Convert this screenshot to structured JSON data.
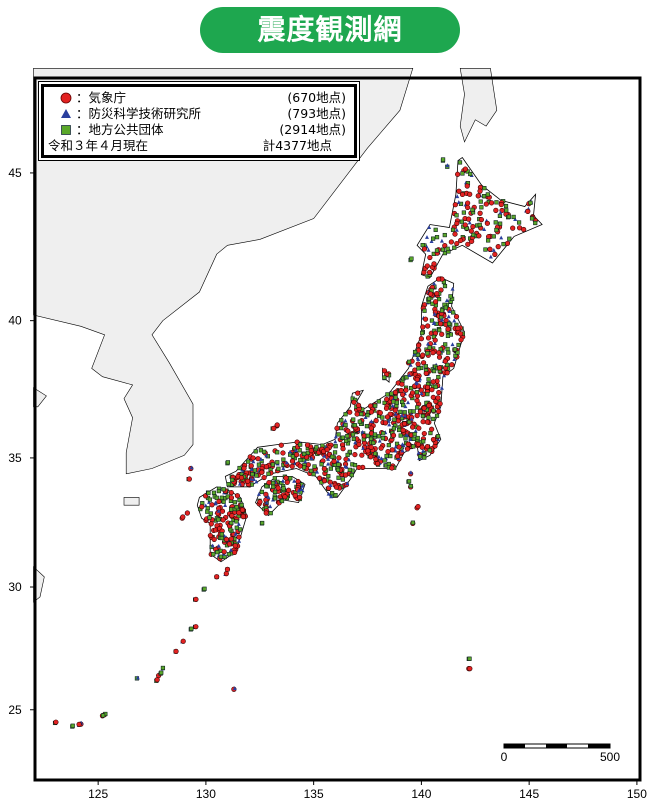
{
  "title": "震度観測網",
  "legend": {
    "items": [
      {
        "symbol": "red-circle",
        "color": "#e32222",
        "label": "：気象庁",
        "count": "(670地点)"
      },
      {
        "symbol": "blue-triangle",
        "color": "#2a3f9e",
        "label": "：防災科学技術研究所",
        "count": "(793地点)"
      },
      {
        "symbol": "green-square",
        "color": "#5aa82a",
        "label": "：地方公共団体",
        "count": "(2914地点)"
      }
    ],
    "date": "令和３年４月現在",
    "total": "計4377地点"
  },
  "axes": {
    "longitude_ticks": [
      "125",
      "130",
      "135",
      "140",
      "145",
      "150"
    ],
    "latitude_ticks": [
      "25",
      "30",
      "35",
      "40",
      "45"
    ]
  },
  "scale_bar": {
    "start": "0",
    "end": "500"
  },
  "colors": {
    "land_foreign": "#efefef",
    "land_japan": "#ffffff",
    "sea": "#ffffff",
    "title_bg": "#1ea74f"
  }
}
